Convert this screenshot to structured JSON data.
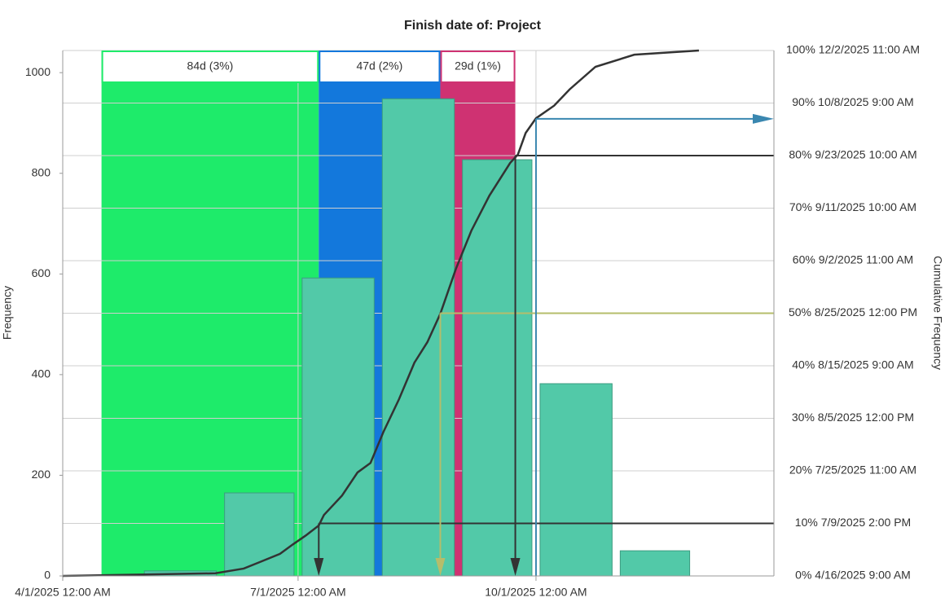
{
  "chart_data": {
    "type": "histogram",
    "title": "Finish date of: Project",
    "y_label": "Frequency",
    "y2_label": "Cumulative Frequency",
    "xlim": [
      "2025-04-01",
      "2026-01-01"
    ],
    "xticks": [
      {
        "value": "2025-04-01",
        "label": "4/1/2025 12:00 AM"
      },
      {
        "value": "2025-07-01",
        "label": "7/1/2025 12:00 AM"
      },
      {
        "value": "2025-10-01",
        "label": "10/1/2025 12:00 AM"
      }
    ],
    "ylim": [
      0,
      1044
    ],
    "yticks": [
      0,
      200,
      400,
      600,
      800,
      1000
    ],
    "y2lim": [
      0,
      100
    ],
    "y2ticks": [
      {
        "value": 0,
        "label": "0% 4/16/2025 9:00 AM"
      },
      {
        "value": 10,
        "label": "10% 7/9/2025 2:00 PM"
      },
      {
        "value": 20,
        "label": "20% 7/25/2025 11:00 AM"
      },
      {
        "value": 30,
        "label": "30% 8/5/2025 12:00 PM"
      },
      {
        "value": 40,
        "label": "40% 8/15/2025 9:00 AM"
      },
      {
        "value": 50,
        "label": "50% 8/25/2025 12:00 PM"
      },
      {
        "value": 60,
        "label": "60% 9/2/2025 11:00 AM"
      },
      {
        "value": 70,
        "label": "70% 9/11/2025 10:00 AM"
      },
      {
        "value": 80,
        "label": "80% 9/23/2025 10:00 AM"
      },
      {
        "value": 90,
        "label": "90% 10/8/2025 9:00 AM"
      },
      {
        "value": 100,
        "label": "100% 12/2/2025 11:00 AM"
      }
    ],
    "grid": true,
    "regions": [
      {
        "label": "84d (3%)",
        "color": "#1eeb6a",
        "start": "2025-04-16",
        "end": "2025-07-09"
      },
      {
        "label": "47d (2%)",
        "color": "#1378dc",
        "start": "2025-07-09",
        "end": "2025-08-25"
      },
      {
        "label": "29d (1%)",
        "color": "#cf3272",
        "start": "2025-08-25",
        "end": "2025-09-23"
      }
    ],
    "bins": [
      "2025-05-01",
      "2025-06-01",
      "2025-07-01",
      "2025-08-01",
      "2025-09-01",
      "2025-10-01",
      "2025-11-01",
      "2025-12-01"
    ],
    "counts": [
      10,
      165,
      592,
      948,
      827,
      382,
      50
    ],
    "bar_color": "#52c9a8",
    "cumulative": {
      "axis": "y2",
      "color": "#333333",
      "x": [
        "2025-04-01",
        "2025-05-30",
        "2025-06-10",
        "2025-06-16",
        "2025-06-24",
        "2025-06-29",
        "2025-07-04",
        "2025-07-09",
        "2025-07-11",
        "2025-07-18",
        "2025-07-24",
        "2025-07-29",
        "2025-08-03",
        "2025-08-09",
        "2025-08-15",
        "2025-08-20",
        "2025-08-25",
        "2025-08-31",
        "2025-09-06",
        "2025-09-13",
        "2025-09-21",
        "2025-09-24",
        "2025-09-27",
        "2025-10-01",
        "2025-10-08",
        "2025-10-14",
        "2025-10-24",
        "2025-11-08",
        "2025-12-03"
      ],
      "values": [
        0,
        0.5,
        1.4,
        2.6,
        4.2,
        6,
        7.7,
        9.6,
        11.6,
        15.3,
        19.7,
        21.5,
        27.4,
        33.6,
        40.6,
        44.5,
        49.9,
        58.4,
        65.7,
        72.4,
        78.6,
        80.2,
        84.3,
        87.1,
        89.5,
        92.6,
        96.9,
        99.2,
        100
      ]
    },
    "markers": [
      {
        "percent": 10,
        "date": "2025-07-09",
        "color": "#333333",
        "arrow": "down"
      },
      {
        "percent": 50,
        "date": "2025-08-25",
        "color": "#b5bd6b",
        "arrow": "down"
      },
      {
        "percent": 80,
        "date": "2025-09-23",
        "color": "#333333",
        "arrow": "down"
      },
      {
        "percent": 87,
        "date": "2025-10-01",
        "color": "#3a87b0",
        "arrow": "right"
      }
    ]
  }
}
